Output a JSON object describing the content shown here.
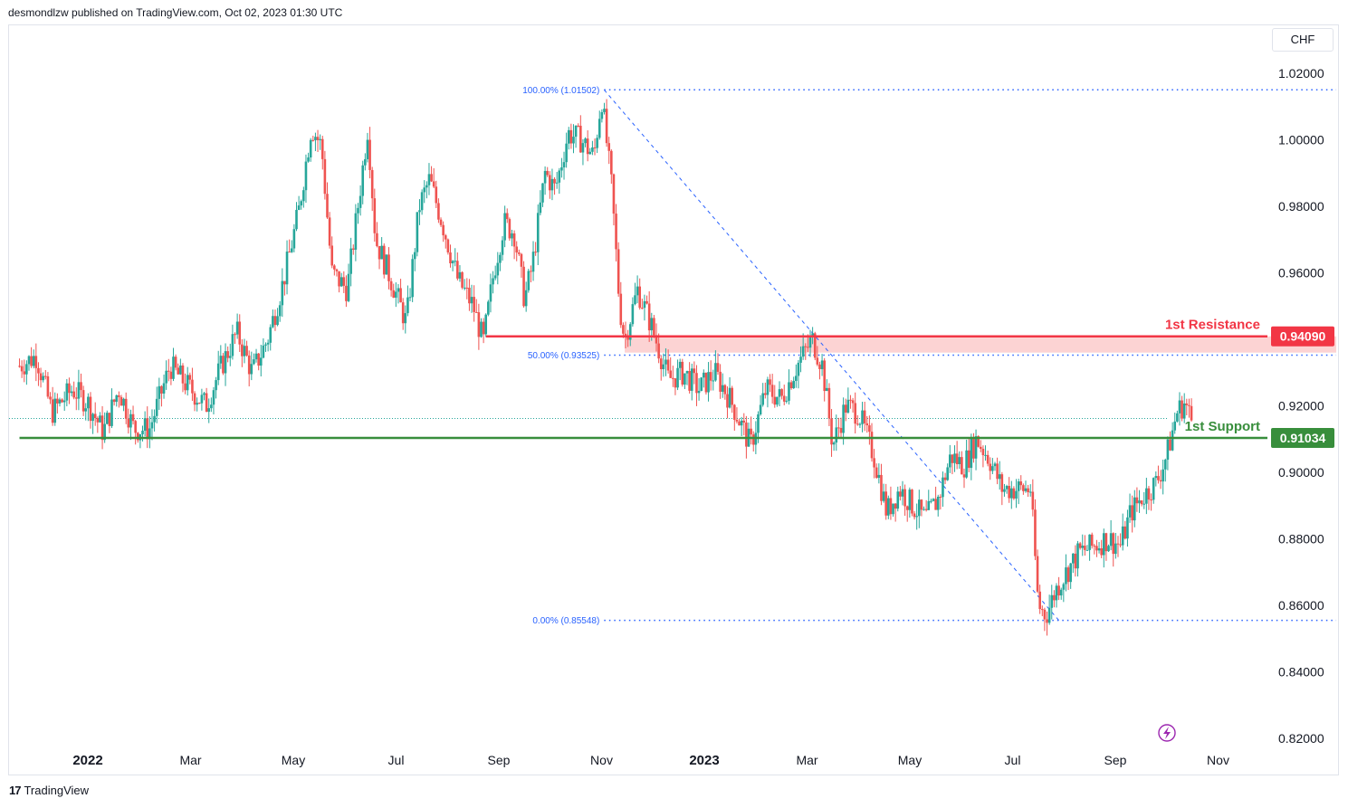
{
  "header": {
    "published": "desmondlzw published on TradingView.com, Oct 02, 2023 01:30 UTC"
  },
  "footer": {
    "brand_mark": "17",
    "brand": "TradingView"
  },
  "currency_label": "CHF",
  "colors": {
    "up": "#26a69a",
    "down": "#ef5350",
    "resistance": "#f23645",
    "support": "#388e3c",
    "fib": "#2962ff",
    "zone": "#fcd3d3"
  },
  "chart_data": {
    "type": "candlestick",
    "symbol_currency": "CHF",
    "ylim": [
      0.81,
      1.03
    ],
    "y_ticks": [
      {
        "value": 1.02,
        "label": "1.02000"
      },
      {
        "value": 1.0,
        "label": "1.00000"
      },
      {
        "value": 0.98,
        "label": "0.98000"
      },
      {
        "value": 0.96,
        "label": "0.96000"
      },
      {
        "value": 0.92,
        "label": "0.92000"
      },
      {
        "value": 0.9,
        "label": "0.90000"
      },
      {
        "value": 0.88,
        "label": "0.88000"
      },
      {
        "value": 0.86,
        "label": "0.86000"
      },
      {
        "value": 0.84,
        "label": "0.84000"
      },
      {
        "value": 0.82,
        "label": "0.82000"
      }
    ],
    "x_ticks": [
      {
        "label": "2022",
        "bold": true,
        "month_index": 0
      },
      {
        "label": "Mar",
        "bold": false,
        "month_index": 2
      },
      {
        "label": "May",
        "bold": false,
        "month_index": 4
      },
      {
        "label": "Jul",
        "bold": false,
        "month_index": 6
      },
      {
        "label": "Sep",
        "bold": false,
        "month_index": 8
      },
      {
        "label": "Nov",
        "bold": false,
        "month_index": 10
      },
      {
        "label": "2023",
        "bold": true,
        "month_index": 12
      },
      {
        "label": "Mar",
        "bold": false,
        "month_index": 14
      },
      {
        "label": "May",
        "bold": false,
        "month_index": 16
      },
      {
        "label": "Jul",
        "bold": false,
        "month_index": 18
      },
      {
        "label": "Sep",
        "bold": false,
        "month_index": 20
      },
      {
        "label": "Nov",
        "bold": false,
        "month_index": 22
      }
    ],
    "x_range_months": [
      -1.33,
      24.5
    ],
    "price_path": [
      [
        -1.33,
        0.932
      ],
      [
        -1.0,
        0.935
      ],
      [
        -0.7,
        0.918
      ],
      [
        -0.3,
        0.925
      ],
      [
        0.0,
        0.921
      ],
      [
        0.3,
        0.912
      ],
      [
        0.6,
        0.925
      ],
      [
        0.9,
        0.913
      ],
      [
        1.2,
        0.913
      ],
      [
        1.6,
        0.932
      ],
      [
        2.0,
        0.925
      ],
      [
        2.3,
        0.92
      ],
      [
        2.6,
        0.932
      ],
      [
        2.9,
        0.942
      ],
      [
        3.2,
        0.93
      ],
      [
        3.5,
        0.94
      ],
      [
        3.8,
        0.957
      ],
      [
        4.1,
        0.978
      ],
      [
        4.35,
        1.004
      ],
      [
        4.55,
        0.998
      ],
      [
        4.75,
        0.96
      ],
      [
        5.05,
        0.955
      ],
      [
        5.3,
        0.985
      ],
      [
        5.45,
        1.004
      ],
      [
        5.6,
        0.97
      ],
      [
        5.9,
        0.958
      ],
      [
        6.2,
        0.945
      ],
      [
        6.45,
        0.98
      ],
      [
        6.65,
        0.988
      ],
      [
        6.9,
        0.975
      ],
      [
        7.2,
        0.958
      ],
      [
        7.5,
        0.95
      ],
      [
        7.7,
        0.939
      ],
      [
        7.9,
        0.96
      ],
      [
        8.1,
        0.975
      ],
      [
        8.3,
        0.972
      ],
      [
        8.5,
        0.952
      ],
      [
        8.65,
        0.962
      ],
      [
        8.9,
        0.99
      ],
      [
        9.1,
        0.985
      ],
      [
        9.35,
        1.002
      ],
      [
        9.6,
        1.0
      ],
      [
        9.85,
        0.995
      ],
      [
        10.0,
        1.013
      ],
      [
        10.2,
        0.985
      ],
      [
        10.35,
        0.95
      ],
      [
        10.45,
        0.94
      ],
      [
        10.7,
        0.955
      ],
      [
        10.95,
        0.945
      ],
      [
        11.3,
        0.928
      ],
      [
        11.6,
        0.93
      ],
      [
        11.9,
        0.925
      ],
      [
        12.2,
        0.93
      ],
      [
        12.5,
        0.922
      ],
      [
        12.7,
        0.915
      ],
      [
        12.9,
        0.908
      ],
      [
        13.2,
        0.925
      ],
      [
        13.5,
        0.922
      ],
      [
        13.8,
        0.932
      ],
      [
        14.1,
        0.94
      ],
      [
        14.3,
        0.932
      ],
      [
        14.5,
        0.908
      ],
      [
        14.75,
        0.92
      ],
      [
        15.0,
        0.918
      ],
      [
        15.3,
        0.905
      ],
      [
        15.55,
        0.888
      ],
      [
        15.8,
        0.895
      ],
      [
        16.05,
        0.89
      ],
      [
        16.3,
        0.886
      ],
      [
        16.55,
        0.892
      ],
      [
        16.8,
        0.905
      ],
      [
        17.05,
        0.902
      ],
      [
        17.3,
        0.91
      ],
      [
        17.55,
        0.904
      ],
      [
        17.8,
        0.895
      ],
      [
        18.1,
        0.895
      ],
      [
        18.35,
        0.895
      ],
      [
        18.5,
        0.86
      ],
      [
        18.65,
        0.857
      ],
      [
        18.85,
        0.865
      ],
      [
        19.05,
        0.87
      ],
      [
        19.3,
        0.876
      ],
      [
        19.6,
        0.878
      ],
      [
        19.85,
        0.88
      ],
      [
        20.1,
        0.878
      ],
      [
        20.3,
        0.888
      ],
      [
        20.55,
        0.893
      ],
      [
        20.8,
        0.897
      ],
      [
        21.0,
        0.905
      ],
      [
        21.2,
        0.918
      ],
      [
        21.35,
        0.921
      ],
      [
        21.5,
        0.915
      ]
    ],
    "levels": [
      {
        "name": "1st Resistance",
        "value": 0.9409,
        "tag": "0.94090",
        "color": "resistance",
        "start_month": 7.75
      },
      {
        "name": "1st Support",
        "value": 0.91034,
        "tag": "0.91034",
        "color": "support",
        "start_month": -1.33
      }
    ],
    "resistance_zone": {
      "top": 0.9409,
      "bottom": 0.936,
      "start_month": 10.45,
      "end_month": 24.3
    },
    "current_price": 0.9162,
    "fibonacci": {
      "start_month": 10.05,
      "end_month": 24.3,
      "levels": [
        {
          "ratio_label": "100.00% (1.01502)",
          "value": 1.01502
        },
        {
          "ratio_label": "50.00% (0.93525)",
          "value": 0.93525
        },
        {
          "ratio_label": "0.00% (0.85548)",
          "value": 0.85548
        }
      ],
      "diagonal": [
        [
          10.05,
          1.01502
        ],
        [
          18.9,
          0.85548
        ]
      ]
    }
  }
}
